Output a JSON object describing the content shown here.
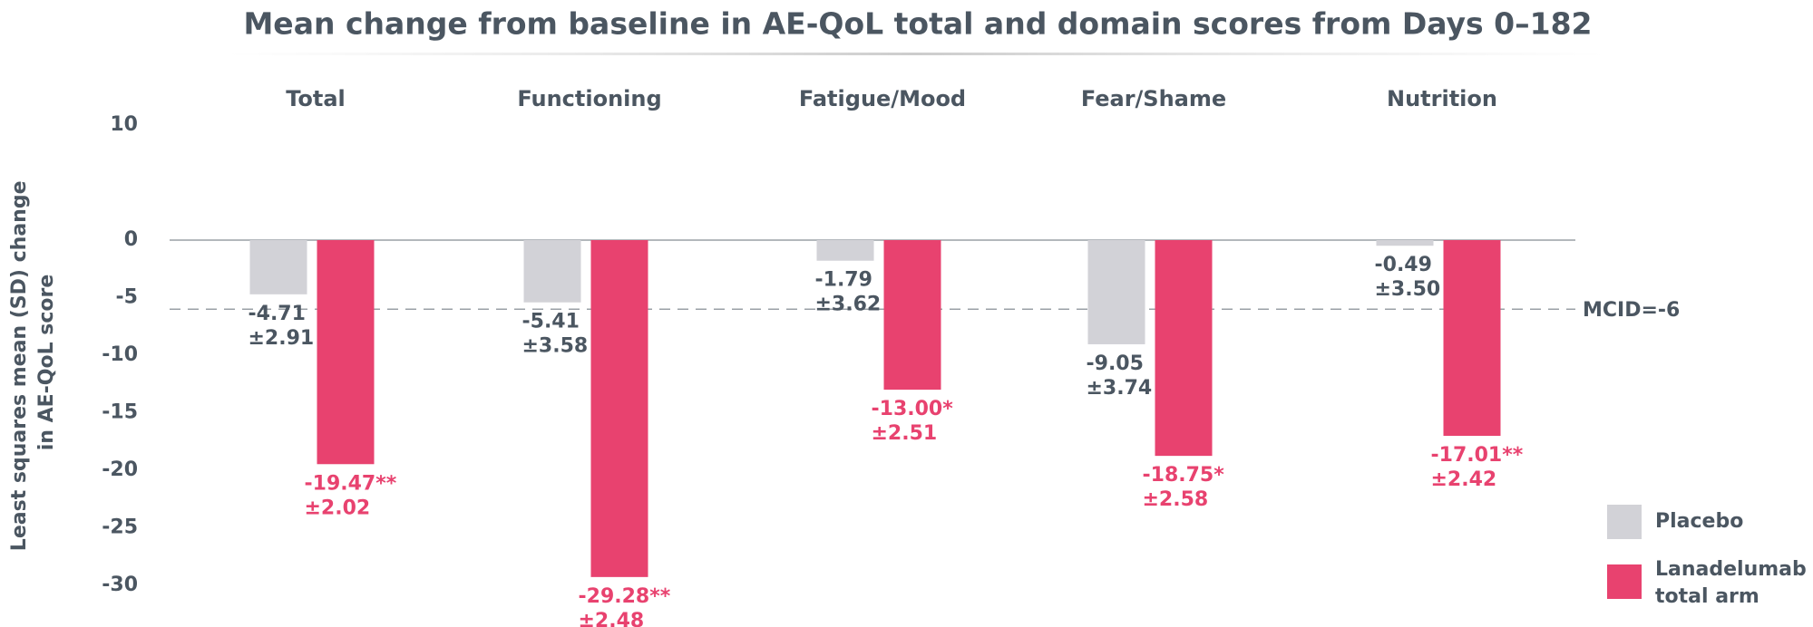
{
  "chart_data": {
    "type": "bar",
    "title": "Mean change from baseline in AE-QoL total and domain scores from Days 0–182",
    "ylabel": [
      "Least squares mean (SD) change",
      "in AE-QoL score"
    ],
    "categories": [
      "Total",
      "Functioning",
      "Fatigue/Mood",
      "Fear/Shame",
      "Nutrition"
    ],
    "series": [
      {
        "name": "Placebo",
        "color": "#d2d2d7",
        "label_color": "#4b5661",
        "values": [
          -4.71,
          -5.41,
          -1.79,
          -9.05,
          -0.49
        ],
        "value_labels": [
          "-4.71",
          "-5.41",
          "-1.79",
          "-9.05",
          "-0.49"
        ],
        "sd_labels": [
          "±2.91",
          "±3.58",
          "±3.62",
          "±3.74",
          "±3.50"
        ]
      },
      {
        "name": "Lanadelumab total arm",
        "color": "#e8426f",
        "label_color": "#e8426f",
        "values": [
          -19.47,
          -29.28,
          -13.0,
          -18.75,
          -17.01
        ],
        "value_labels": [
          "-19.47**",
          "-29.28**",
          "-13.00*",
          "-18.75*",
          "-17.01**"
        ],
        "sd_labels": [
          "±2.02",
          "±2.48",
          "±2.51",
          "±2.58",
          "±2.42"
        ]
      }
    ],
    "reference_line": {
      "value": -6,
      "label": "MCID=-6"
    },
    "ylim": [
      -30,
      10
    ],
    "yticks": [
      10,
      0,
      -5,
      -10,
      -15,
      -20,
      -25,
      -30
    ],
    "legend": "bottom-right"
  }
}
